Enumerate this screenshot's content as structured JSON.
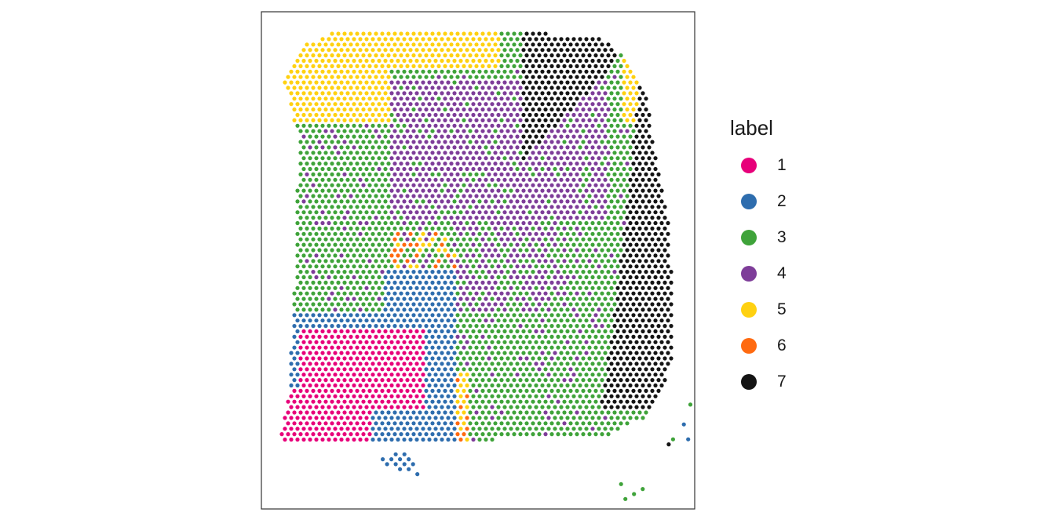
{
  "chart_data": {
    "type": "scatter",
    "title": "",
    "xlabel": "",
    "ylabel": "",
    "grid": false,
    "legend_position": "right",
    "legend_title": "label",
    "categories": [
      {
        "label": "1",
        "color": "#E7007A"
      },
      {
        "label": "2",
        "color": "#2E6DAE"
      },
      {
        "label": "3",
        "color": "#3FA33A"
      },
      {
        "label": "4",
        "color": "#7E3D99"
      },
      {
        "label": "5",
        "color": "#FFD111"
      },
      {
        "label": "6",
        "color": "#FF6A10"
      },
      {
        "label": "7",
        "color": "#141414"
      }
    ],
    "regions_description": "spatial spots on a hexagonal grid colored by cluster label",
    "stray_points": [
      {
        "label": "3",
        "x": 0.99,
        "y": 0.21
      },
      {
        "label": "2",
        "x": 1.02,
        "y": 0.17
      },
      {
        "label": "2",
        "x": 1.03,
        "y": 0.14
      },
      {
        "label": "7",
        "x": 0.94,
        "y": 0.13
      },
      {
        "label": "3",
        "x": 0.95,
        "y": 0.14
      },
      {
        "label": "3",
        "x": 0.83,
        "y": 0.05
      },
      {
        "label": "3",
        "x": 0.86,
        "y": 0.03
      },
      {
        "label": "3",
        "x": 0.88,
        "y": 0.04
      },
      {
        "label": "3",
        "x": 0.84,
        "y": 0.02
      }
    ]
  }
}
